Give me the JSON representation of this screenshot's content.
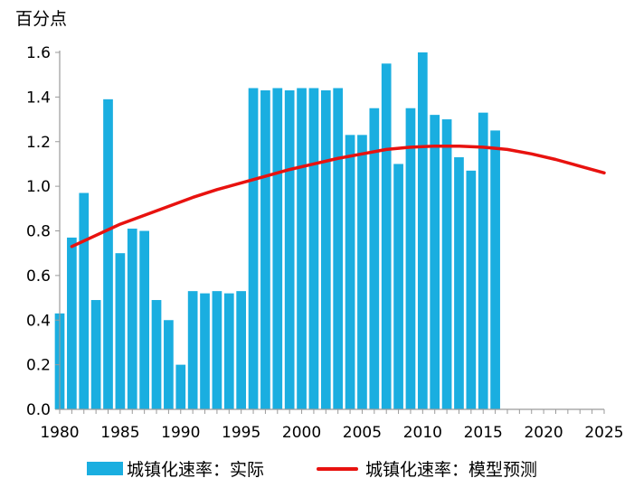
{
  "chart_data": {
    "type": "bar",
    "ylabel": "百分点",
    "xlabel": "",
    "title": "",
    "ylim": [
      0,
      1.6
    ],
    "xlim": [
      1980,
      2025
    ],
    "x_ticks": [
      1980,
      1985,
      1990,
      1995,
      2000,
      2005,
      2010,
      2015,
      2020,
      2025
    ],
    "y_ticks": [
      0.0,
      0.2,
      0.4,
      0.6,
      0.8,
      1.0,
      1.2,
      1.4,
      1.6
    ],
    "y_tick_labels": [
      "0.0",
      "0.2",
      "0.4",
      "0.6",
      "0.8",
      "1.0",
      "1.2",
      "1.4",
      "1.6"
    ],
    "grid": false,
    "legend_position": "bottom",
    "series": [
      {
        "name": "城镇化速率：实际",
        "kind": "bar",
        "color": "#1aaee0",
        "x": [
          1980,
          1981,
          1982,
          1983,
          1984,
          1985,
          1986,
          1987,
          1988,
          1989,
          1990,
          1991,
          1992,
          1993,
          1994,
          1995,
          1996,
          1997,
          1998,
          1999,
          2000,
          2001,
          2002,
          2003,
          2004,
          2005,
          2006,
          2007,
          2008,
          2009,
          2010,
          2011,
          2012,
          2013,
          2014,
          2015,
          2016
        ],
        "values": [
          0.43,
          0.77,
          0.97,
          0.49,
          1.39,
          0.7,
          0.81,
          0.8,
          0.49,
          0.4,
          0.2,
          0.53,
          0.52,
          0.53,
          0.52,
          0.53,
          1.44,
          1.43,
          1.44,
          1.43,
          1.44,
          1.44,
          1.43,
          1.44,
          1.23,
          1.23,
          1.35,
          1.55,
          1.1,
          1.35,
          1.6,
          1.32,
          1.3,
          1.13,
          1.07,
          1.33,
          1.25
        ]
      },
      {
        "name": "城镇化速率：模型预测",
        "kind": "line",
        "color": "#e8120f",
        "x": [
          1981,
          1983,
          1985,
          1987,
          1989,
          1991,
          1993,
          1995,
          1997,
          1999,
          2001,
          2003,
          2005,
          2007,
          2009,
          2011,
          2013,
          2015,
          2017,
          2019,
          2021,
          2023,
          2025
        ],
        "values": [
          0.73,
          0.78,
          0.83,
          0.87,
          0.91,
          0.95,
          0.985,
          1.015,
          1.045,
          1.075,
          1.1,
          1.125,
          1.145,
          1.165,
          1.175,
          1.18,
          1.18,
          1.175,
          1.165,
          1.145,
          1.12,
          1.09,
          1.06
        ]
      }
    ]
  }
}
